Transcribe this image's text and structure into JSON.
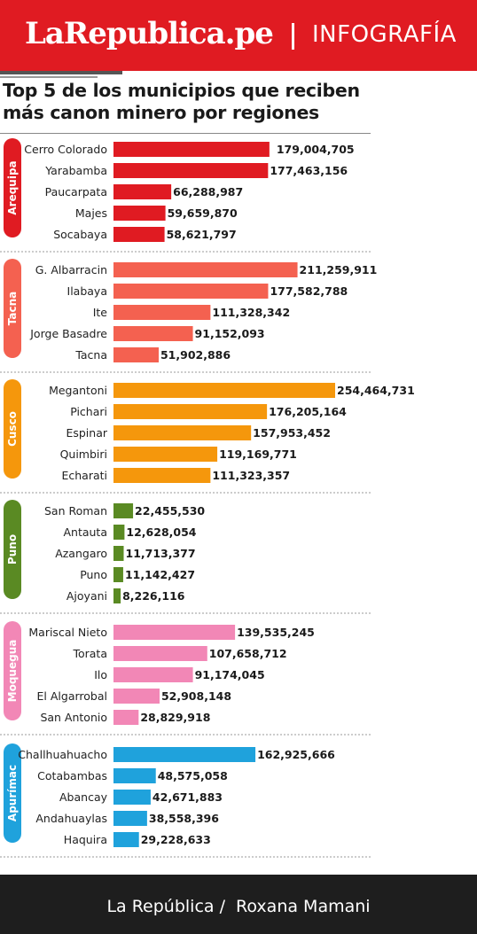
{
  "header": {
    "logo": "LaRepublica.pe",
    "separator": "|",
    "section": "INFOGRAFÍA"
  },
  "title": "Top 5 de los municipios que reciben más canon minero por regiones",
  "colors": {
    "header": "#e01b22",
    "footer": "#1e1e1e"
  },
  "chart_data": {
    "type": "bar",
    "orientation": "horizontal",
    "title": "Top 5 de los municipios que reciben más canon minero por regiones",
    "groups": [
      {
        "region": "Arequipa",
        "color": "#e01b22",
        "categories": [
          "Cerro Colorado",
          "Yarabamba",
          "Paucarpata",
          "Majes",
          "Socabaya"
        ],
        "values": [
          179004705,
          177463156,
          66288987,
          59659870,
          58621797
        ],
        "labels": [
          "179,004,705",
          "177,463,156",
          "66,288,987",
          "59,659,870",
          "58,621,797"
        ]
      },
      {
        "region": "Tacna",
        "color": "#f46150",
        "categories": [
          "G. Albarracin",
          "Ilabaya",
          "Ite",
          "Jorge Basadre",
          "Tacna"
        ],
        "values": [
          211259911,
          177582788,
          111328342,
          91152093,
          51902886
        ],
        "labels": [
          "211,259,911",
          "177,582,788",
          "111,328,342",
          "91,152,093",
          "51,902,886"
        ]
      },
      {
        "region": "Cusco",
        "color": "#f5970c",
        "categories": [
          "Megantoni",
          "Pichari",
          "Espinar",
          "Quimbiri",
          "Echarati"
        ],
        "values": [
          254464731,
          176205164,
          157953452,
          119169771,
          111323357
        ],
        "labels": [
          "254,464,731",
          "176,205,164",
          "157,953,452",
          "119,169,771",
          "111,323,357"
        ]
      },
      {
        "region": "Puno",
        "color": "#5a8a23",
        "categories": [
          "San Roman",
          "Antauta",
          "Azangaro",
          "Puno",
          "Ajoyani"
        ],
        "values": [
          22455530,
          12628054,
          11713377,
          11142427,
          8226116
        ],
        "labels": [
          "22,455,530",
          "12,628,054",
          "11,713,377",
          "11,142,427",
          "8,226,116"
        ]
      },
      {
        "region": "Moquegua",
        "color": "#f287b6",
        "categories": [
          "Mariscal Nieto",
          "Torata",
          "Ilo",
          "El Algarrobal",
          "San Antonio"
        ],
        "values": [
          139535245,
          107658712,
          91174045,
          52908148,
          28829918
        ],
        "labels": [
          "139,535,245",
          "107,658,712",
          "91,174,045",
          "52,908,148",
          "28,829,918"
        ]
      },
      {
        "region": "Apurímac",
        "color": "#1fa2dc",
        "categories": [
          "Challhuahuacho",
          "Cotabambas",
          "Abancay",
          "Andahuaylas",
          "Haquira"
        ],
        "values": [
          162925666,
          48575058,
          42671883,
          38558396,
          29228633
        ],
        "labels": [
          "162,925,666",
          "48,575,058",
          "42,671,883",
          "38,558,396",
          "29,228,633"
        ]
      }
    ]
  },
  "footer": {
    "publisher": "La República /",
    "author": "Roxana Mamani"
  }
}
